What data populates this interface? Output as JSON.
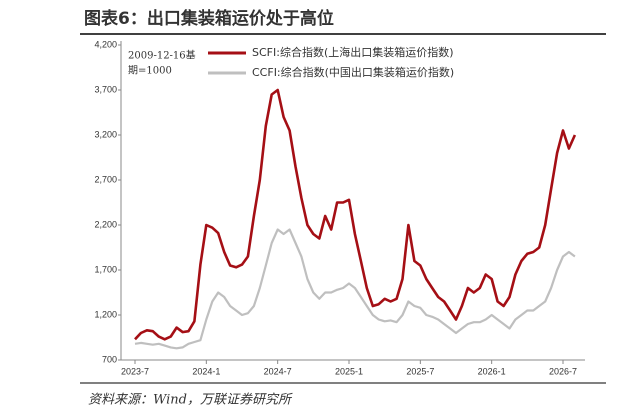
{
  "chart_data": {
    "type": "line",
    "title": "图表6：出口集装箱运价处于高位",
    "source": "资料来源：Wind，万联证券研究所",
    "annotation": [
      "2009-12-16基",
      "期=1000"
    ],
    "categories": [
      "2023-7",
      null,
      null,
      null,
      null,
      null,
      null,
      null,
      null,
      null,
      null,
      null,
      "2024-1",
      null,
      null,
      null,
      null,
      null,
      null,
      null,
      null,
      null,
      null,
      null,
      "2024-7",
      null,
      null,
      null,
      null,
      null,
      null,
      null,
      null,
      null,
      null,
      null,
      "2025-1",
      null,
      null,
      null,
      null,
      null,
      null,
      null,
      null,
      null,
      null,
      null,
      "2025-7",
      null,
      null,
      null,
      null,
      null,
      null,
      null,
      null,
      null,
      null,
      null,
      "2026-1",
      null,
      null,
      null,
      null,
      null,
      null,
      null,
      null,
      null,
      null,
      null,
      "2026-7",
      null,
      null
    ],
    "series": [
      {
        "name": "SCFI:综合指数(上海出口集装箱运价指数)",
        "color": "#a50f15",
        "values": [
          930,
          1000,
          1030,
          1020,
          960,
          930,
          960,
          1060,
          1010,
          1020,
          1130,
          1760,
          2200,
          2170,
          2110,
          1900,
          1750,
          1730,
          1760,
          1850,
          2300,
          2700,
          3300,
          3650,
          3700,
          3400,
          3250,
          2850,
          2500,
          2200,
          2100,
          2050,
          2300,
          2150,
          2450,
          2450,
          2480,
          2100,
          1800,
          1500,
          1300,
          1320,
          1380,
          1350,
          1380,
          1600,
          2200,
          1800,
          1750,
          1600,
          1500,
          1400,
          1350,
          1250,
          1150,
          1300,
          1500,
          1450,
          1500,
          1650,
          1600,
          1350,
          1300,
          1400,
          1650,
          1800,
          1880,
          1900,
          1950,
          2200,
          2600,
          3000,
          3250,
          3050,
          3200
        ]
      },
      {
        "name": "CCFI:综合指数(中国出口集装箱运价指数)",
        "color": "#bfbfbf",
        "values": [
          880,
          890,
          880,
          870,
          880,
          860,
          840,
          830,
          840,
          880,
          900,
          920,
          1150,
          1350,
          1450,
          1400,
          1300,
          1250,
          1200,
          1220,
          1300,
          1500,
          1750,
          2000,
          2150,
          2100,
          2150,
          2000,
          1850,
          1600,
          1450,
          1380,
          1450,
          1450,
          1480,
          1500,
          1550,
          1500,
          1400,
          1300,
          1200,
          1150,
          1130,
          1140,
          1120,
          1200,
          1350,
          1300,
          1280,
          1200,
          1180,
          1150,
          1100,
          1050,
          1000,
          1050,
          1100,
          1120,
          1120,
          1150,
          1200,
          1150,
          1100,
          1050,
          1150,
          1200,
          1250,
          1250,
          1300,
          1350,
          1500,
          1700,
          1850,
          1900,
          1850
        ]
      }
    ],
    "ylim": [
      700,
      4200
    ],
    "yticks": [
      700,
      {
        "value": 1200,
        "label": "1,200"
      },
      {
        "value": 1700,
        "label": "1,700"
      },
      {
        "value": 2200,
        "label": "2,200"
      },
      {
        "value": 2700,
        "label": "2,700"
      },
      {
        "value": 3200,
        "label": "3,200"
      },
      {
        "value": 3700,
        "label": "3,700"
      },
      {
        "value": 4200,
        "label": "4,200"
      }
    ],
    "grid": false
  }
}
